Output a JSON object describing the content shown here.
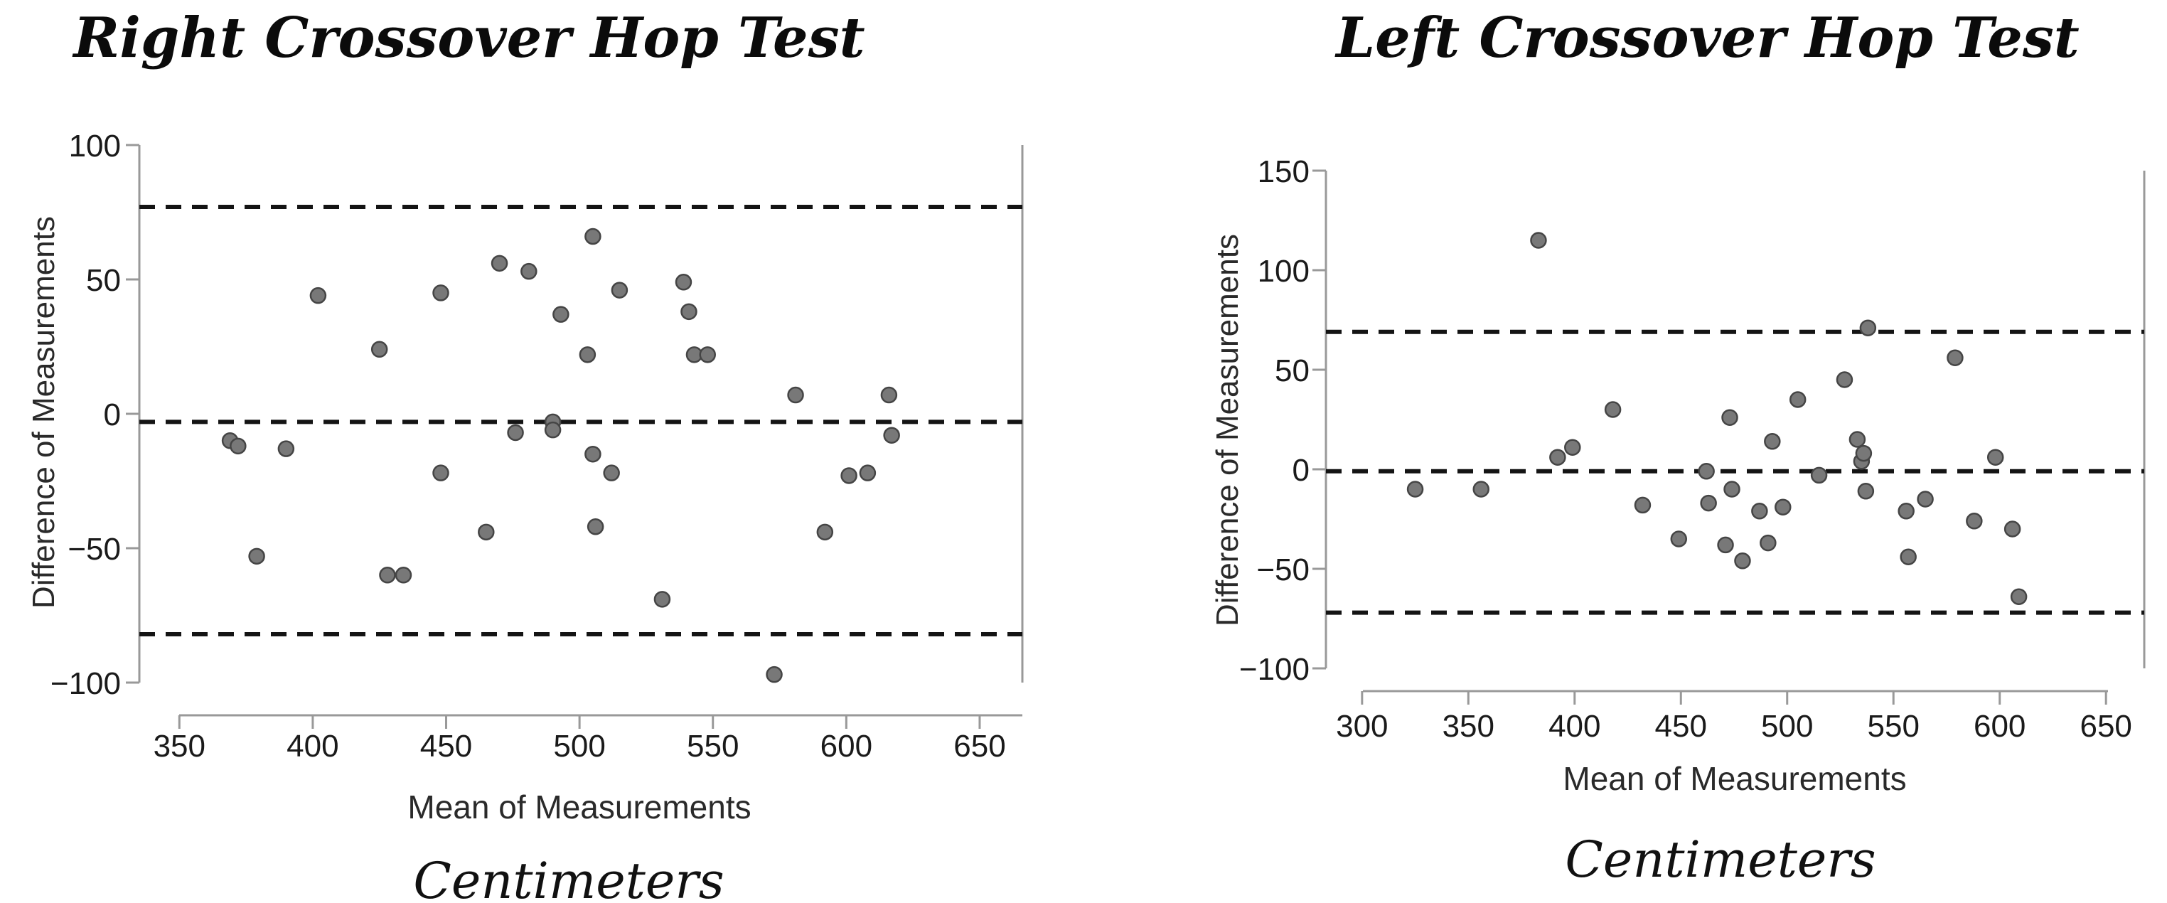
{
  "figure": {
    "background": "#ffffff",
    "description_labels": {
      "left_panel_title": "Right Crossover Hop Test",
      "right_panel_title": "Left Crossover Hop Test"
    }
  },
  "colors": {
    "point_fill": "#787878",
    "point_stroke": "#454545",
    "dashed_line": "#141414",
    "axis_line": "#999999",
    "tick_text": "#1a1a1a"
  },
  "chart_data": [
    {
      "type": "scatter",
      "title": "Right Crossover Hop Test",
      "xlabel": "Mean of Measurements",
      "ylabel": "Difference of Measurements",
      "units": "Centimeters",
      "xlim": [
        335,
        666
      ],
      "ylim": [
        -100,
        100
      ],
      "x_ticks": [
        350,
        400,
        450,
        500,
        550,
        600,
        650
      ],
      "y_ticks": [
        100,
        50,
        0,
        -50,
        -100
      ],
      "upper_loa": 77,
      "mean_bias": -3,
      "lower_loa": -82,
      "grid": false,
      "points": [
        [
          369,
          -10
        ],
        [
          372,
          -12
        ],
        [
          379,
          -53
        ],
        [
          390,
          -13
        ],
        [
          402,
          44
        ],
        [
          425,
          24
        ],
        [
          428,
          -60
        ],
        [
          434,
          -60
        ],
        [
          448,
          45
        ],
        [
          448,
          -22
        ],
        [
          465,
          -44
        ],
        [
          470,
          56
        ],
        [
          476,
          -7
        ],
        [
          481,
          53
        ],
        [
          490,
          -3
        ],
        [
          490,
          -6
        ],
        [
          493,
          37
        ],
        [
          503,
          22
        ],
        [
          505,
          66
        ],
        [
          505,
          -15
        ],
        [
          506,
          -42
        ],
        [
          512,
          -22
        ],
        [
          515,
          46
        ],
        [
          531,
          -69
        ],
        [
          539,
          49
        ],
        [
          541,
          38
        ],
        [
          543,
          22
        ],
        [
          548,
          22
        ],
        [
          573,
          -97
        ],
        [
          581,
          7
        ],
        [
          592,
          -44
        ],
        [
          601,
          -23
        ],
        [
          608,
          -22
        ],
        [
          616,
          7
        ],
        [
          617,
          -8
        ]
      ]
    },
    {
      "type": "scatter",
      "title": "Left Crossover Hop Test",
      "xlabel": "Mean of Measurements",
      "ylabel": "Difference of Measurements",
      "units": "Centimeters",
      "xlim": [
        283,
        668
      ],
      "ylim": [
        -100,
        150
      ],
      "x_ticks": [
        300,
        350,
        400,
        450,
        500,
        550,
        600,
        650
      ],
      "y_ticks": [
        150,
        100,
        50,
        0,
        -50,
        -100
      ],
      "upper_loa": 69,
      "mean_bias": -1,
      "lower_loa": -72,
      "grid": false,
      "points": [
        [
          325,
          -10
        ],
        [
          356,
          -10
        ],
        [
          383,
          115
        ],
        [
          392,
          6
        ],
        [
          399,
          11
        ],
        [
          418,
          30
        ],
        [
          432,
          -18
        ],
        [
          449,
          -35
        ],
        [
          462,
          -1
        ],
        [
          463,
          -17
        ],
        [
          471,
          -38
        ],
        [
          473,
          26
        ],
        [
          474,
          -10
        ],
        [
          479,
          -46
        ],
        [
          487,
          -21
        ],
        [
          491,
          -37
        ],
        [
          493,
          14
        ],
        [
          498,
          -19
        ],
        [
          505,
          35
        ],
        [
          515,
          -3
        ],
        [
          527,
          45
        ],
        [
          533,
          15
        ],
        [
          535,
          4
        ],
        [
          536,
          8
        ],
        [
          537,
          -11
        ],
        [
          538,
          71
        ],
        [
          556,
          -21
        ],
        [
          557,
          -44
        ],
        [
          565,
          -15
        ],
        [
          579,
          56
        ],
        [
          588,
          -26
        ],
        [
          598,
          6
        ],
        [
          606,
          -30
        ],
        [
          609,
          -64
        ]
      ]
    }
  ]
}
